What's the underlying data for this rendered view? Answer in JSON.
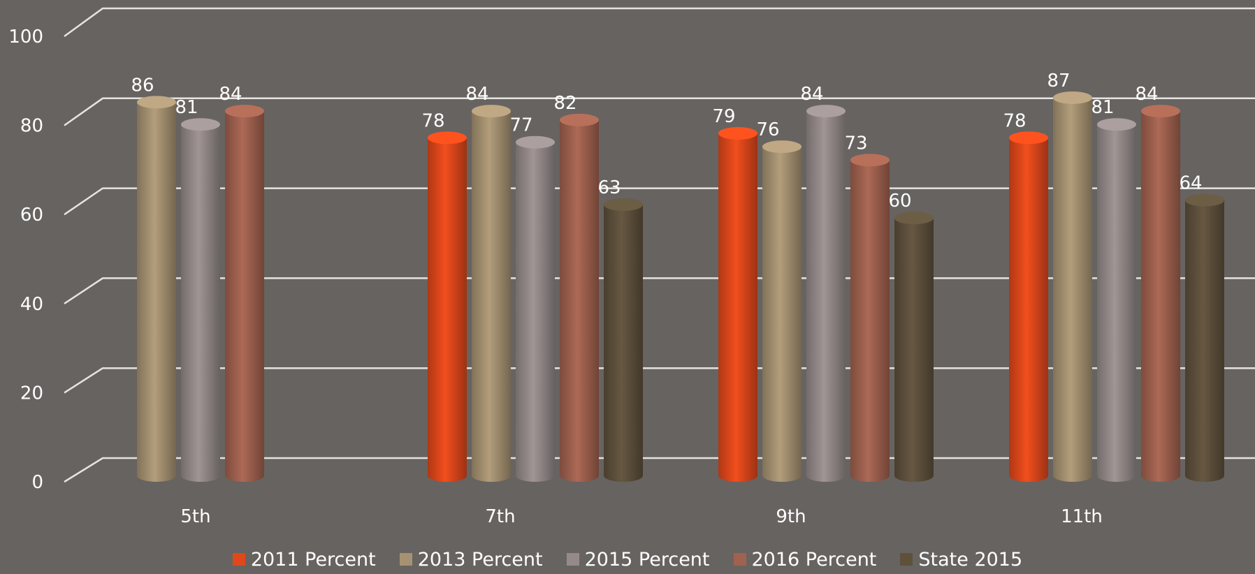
{
  "chart_data": {
    "type": "bar",
    "categories": [
      "5th",
      "7th",
      "9th",
      "11th"
    ],
    "series": [
      {
        "name": "2011 Percent",
        "color": "#E0481B",
        "values": [
          null,
          78,
          79,
          78
        ]
      },
      {
        "name": "2013 Percent",
        "color": "#A69272",
        "values": [
          86,
          84,
          76,
          87
        ]
      },
      {
        "name": "2015 Percent",
        "color": "#958A8A",
        "values": [
          81,
          77,
          84,
          81
        ]
      },
      {
        "name": "2016 Percent",
        "color": "#A0614F",
        "values": [
          84,
          82,
          73,
          84
        ]
      },
      {
        "name": "State 2015",
        "color": "#5E513C",
        "values": [
          null,
          63,
          60,
          64
        ]
      }
    ],
    "yticks": [
      "0",
      "20",
      "40",
      "60",
      "80",
      "100"
    ],
    "ylim": [
      0,
      100
    ],
    "grid": true,
    "legend_position": "bottom"
  }
}
